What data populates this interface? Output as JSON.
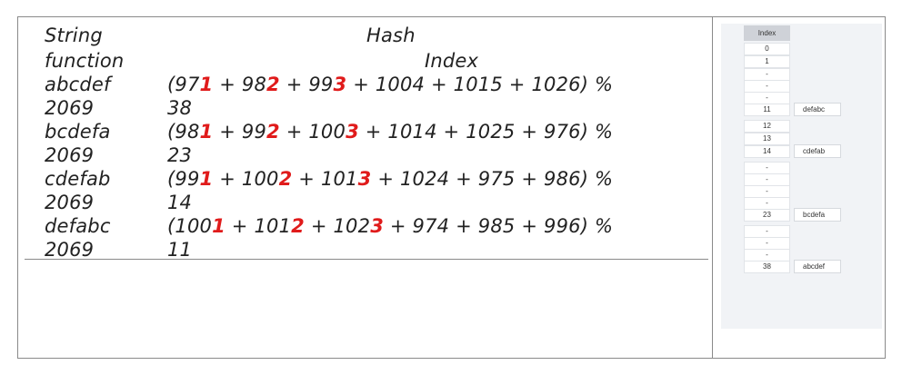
{
  "header": {
    "string_label": "String",
    "function_label": "function",
    "hash_label": "Hash",
    "index_label": "Index"
  },
  "rows": [
    {
      "string": "abcdef",
      "mod": "2069",
      "index": "38",
      "terms": [
        {
          "base": "97",
          "d": "1"
        },
        {
          "base": "98",
          "d": "2"
        },
        {
          "base": "99",
          "d": "3"
        },
        {
          "base": "1004",
          "d": ""
        },
        {
          "base": "1015",
          "d": ""
        },
        {
          "base": "1026",
          "d": ""
        }
      ]
    },
    {
      "string": "bcdefa",
      "mod": "2069",
      "index": "23",
      "terms": [
        {
          "base": "98",
          "d": "1"
        },
        {
          "base": "99",
          "d": "2"
        },
        {
          "base": "100",
          "d": "3"
        },
        {
          "base": "1014",
          "d": ""
        },
        {
          "base": "1025",
          "d": ""
        },
        {
          "base": "976",
          "d": ""
        }
      ]
    },
    {
      "string": "cdefab",
      "mod": "2069",
      "index": "14",
      "terms": [
        {
          "base": "99",
          "d": "1"
        },
        {
          "base": "100",
          "d": "2"
        },
        {
          "base": "101",
          "d": "3"
        },
        {
          "base": "1024",
          "d": ""
        },
        {
          "base": "975",
          "d": ""
        },
        {
          "base": "986",
          "d": ""
        }
      ]
    },
    {
      "string": "defabc",
      "mod": "2069",
      "index": "11",
      "terms": [
        {
          "base": "100",
          "d": "1"
        },
        {
          "base": "101",
          "d": "2"
        },
        {
          "base": "102",
          "d": "3"
        },
        {
          "base": "974",
          "d": ""
        },
        {
          "base": "985",
          "d": ""
        },
        {
          "base": "996",
          "d": ""
        }
      ]
    }
  ],
  "table": {
    "header": "Index",
    "indices": [
      "0",
      "1",
      "-",
      "-",
      "-",
      "11",
      "12",
      "13",
      "14",
      "-",
      "-",
      "-",
      "-",
      "23",
      "-",
      "-",
      "-",
      "38"
    ],
    "entries": [
      {
        "index": "11",
        "value": "defabc"
      },
      {
        "index": "14",
        "value": "cdefab"
      },
      {
        "index": "23",
        "value": "bcdefa"
      },
      {
        "index": "38",
        "value": "abcdef"
      }
    ]
  },
  "colors": {
    "highlight": "#e01b1b",
    "table_header": "#cfd2d8",
    "panel": "#f1f3f6"
  }
}
